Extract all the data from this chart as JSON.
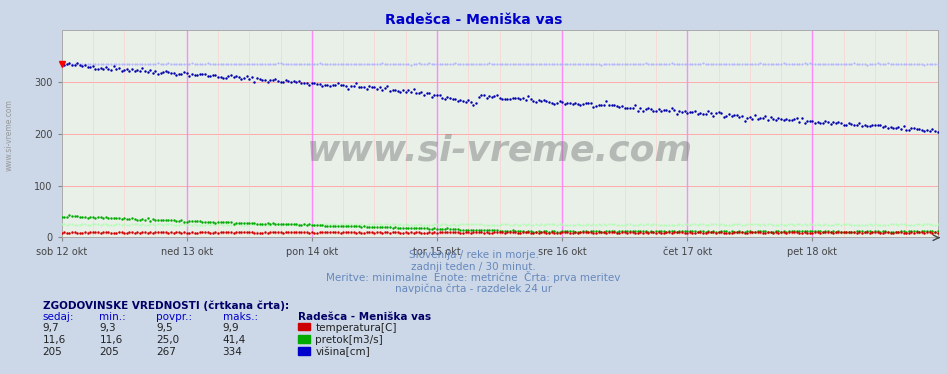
{
  "title": "Radešca - Meniška vas",
  "title_color": "#0000cc",
  "fig_bg_color": "#ccd8e8",
  "plot_bg_color": "#e8f0e8",
  "y_min": 0,
  "y_max": 400,
  "yticks": [
    0,
    100,
    200,
    300
  ],
  "xlabel_ticks": [
    "sob 12 okt",
    "ned 13 okt",
    "pon 14 okt",
    "tor 15 okt",
    "sre 16 okt",
    "čet 17 okt",
    "pet 18 okt"
  ],
  "tick_positions": [
    0,
    48,
    96,
    144,
    192,
    240,
    288
  ],
  "total_points": 337,
  "hgrid_color": "#ffaaaa",
  "vline_color_day": "#ff88ff",
  "vline_color_sub": "#ffcccc",
  "temp_color": "#cc0000",
  "flow_color": "#00aa00",
  "height_color": "#0000aa",
  "hist_height_color": "#aaaaff",
  "hist_flow_color": "#aaffaa",
  "hist_temp_color": "#ffaaaa",
  "watermark": "www.si-vreme.com",
  "subtitle1": "Slovenija / reke in morje.",
  "subtitle2": "zadnji teden / 30 minut.",
  "subtitle3": "Meritve: minimalne  Enote: metrične  Črta: prva meritev",
  "subtitle4": "navpična črta - razdelek 24 ur",
  "subtitle_color": "#6688bb",
  "table_header": "ZGODOVINSKE VREDNOSTI (črtkana črta):",
  "col_headers": [
    "sedaj:",
    "min.:",
    "povpr.:",
    "maks.:"
  ],
  "station_name": "Radešca - Meniška vas",
  "row1_vals": [
    "9,7",
    "9,3",
    "9,5",
    "9,9"
  ],
  "row1_label": "temperatura[C]",
  "row2_vals": [
    "11,6",
    "11,6",
    "25,0",
    "41,4"
  ],
  "row2_label": "pretok[m3/s]",
  "row3_vals": [
    "205",
    "205",
    "267",
    "334"
  ],
  "row3_label": "višina[cm]",
  "row_colors": [
    "#cc0000",
    "#00aa00",
    "#0000cc"
  ],
  "left_label": "www.si-vreme.com"
}
